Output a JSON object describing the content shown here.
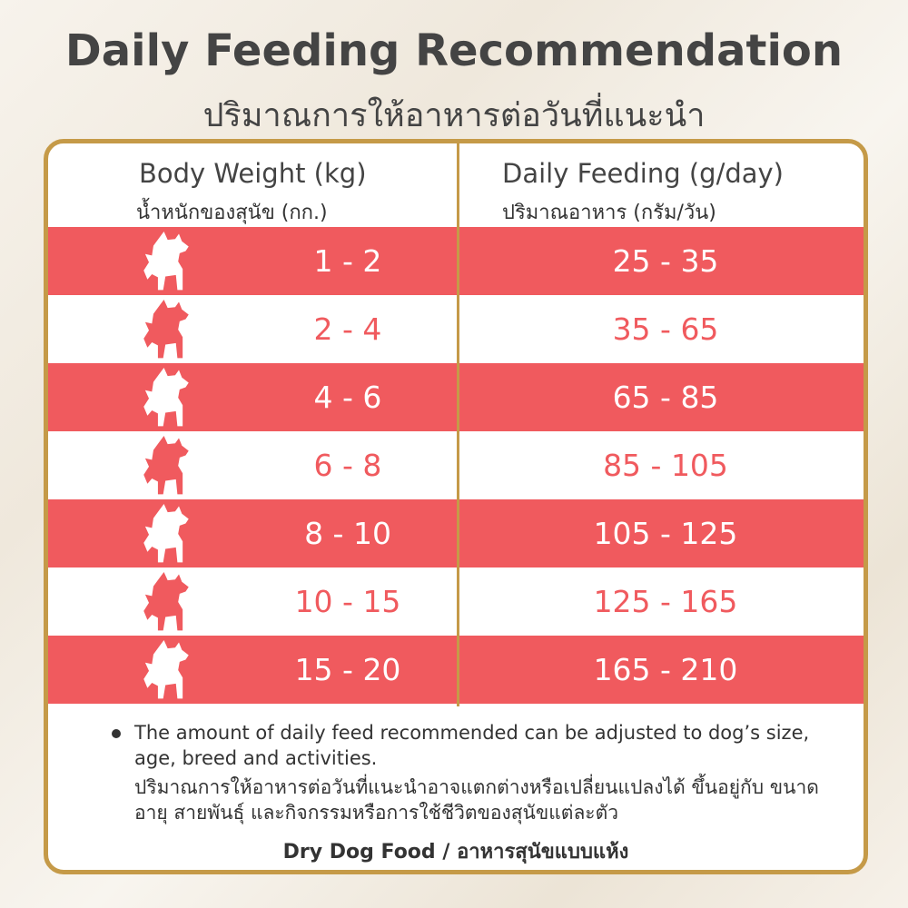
{
  "header": {
    "title": "Daily Feeding Recommendation",
    "subtitle": "ปริมาณการให้อาหารต่อวันที่แนะนำ"
  },
  "table": {
    "columns": [
      {
        "label": "Body Weight (kg)",
        "sublabel": "น้ำหนักของสุนัข (กก.)"
      },
      {
        "label": "Daily Feeding (g/day)",
        "sublabel": "ปริมาณอาหาร (กรัม/วัน)"
      }
    ],
    "rows": [
      [
        "1 - 2",
        "25 - 35"
      ],
      [
        "2 - 4",
        "35 - 65"
      ],
      [
        "4 - 6",
        "65 - 85"
      ],
      [
        "6 - 8",
        "85 - 105"
      ],
      [
        "8 - 10",
        "105 - 125"
      ],
      [
        "10 - 15",
        "125 - 165"
      ],
      [
        "15 - 20",
        "165 - 210"
      ]
    ]
  },
  "notes": {
    "english": "The amount of daily feed recommended can be adjusted to dog’s size, age, breed and activities.",
    "thai": "ปริมาณการให้อาหารต่อวันที่แนะนำอาจแตกต่างหรือเปลี่ยนแปลงได้ ขึ้นอยู่กับ ขนาด อายุ สายพันธุ์ และกิจกรรมหรือการใช้ชีวิตของสุนัขแต่ละตัว",
    "footer_en": "Dry Dog Food",
    "separator": "/",
    "footer_th": "อาหารสุนัขแบบแห้ง"
  }
}
